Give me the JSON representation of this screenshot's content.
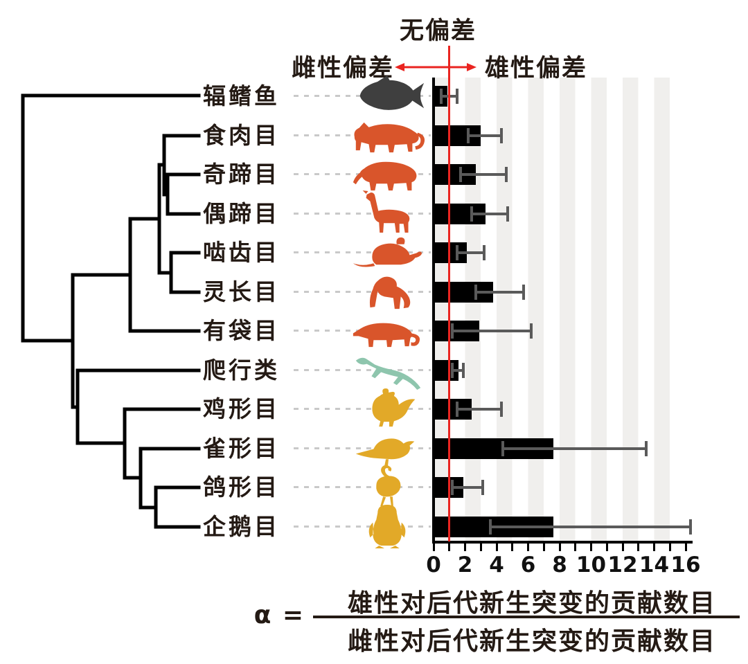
{
  "header": {
    "no_bias_label": "无偏差",
    "female_bias_label": "雌性偏差",
    "male_bias_label": "雄性偏差"
  },
  "chart_data": {
    "type": "bar",
    "orientation": "horizontal",
    "title": "",
    "xlabel": "α",
    "xlim": [
      0,
      16.5
    ],
    "x_major_ticks": [
      0,
      2,
      4,
      6,
      8,
      10,
      12,
      14,
      16
    ],
    "x_minor_tick_step": 1,
    "reference_line_x": 1,
    "grid": "alternating vertical 1-unit stripes starting grey at 0",
    "rows": [
      {
        "taxon": "辐鳍鱼",
        "icon": "fish",
        "icon_color": "#3f3f3f",
        "alpha": 0.9,
        "ci_low": 0.5,
        "ci_high": 1.5
      },
      {
        "taxon": "食肉目",
        "icon": "tiger",
        "icon_color": "#d9552b",
        "alpha": 3.0,
        "ci_low": 2.2,
        "ci_high": 4.3
      },
      {
        "taxon": "奇蹄目",
        "icon": "tapir",
        "icon_color": "#d9552b",
        "alpha": 2.7,
        "ci_low": 1.7,
        "ci_high": 4.6
      },
      {
        "taxon": "偶蹄目",
        "icon": "giraffe",
        "icon_color": "#d9552b",
        "alpha": 3.3,
        "ci_low": 2.4,
        "ci_high": 4.7
      },
      {
        "taxon": "啮齿目",
        "icon": "rat",
        "icon_color": "#d9552b",
        "alpha": 2.1,
        "ci_low": 1.5,
        "ci_high": 3.2
      },
      {
        "taxon": "灵长目",
        "icon": "chimp",
        "icon_color": "#d9552b",
        "alpha": 3.8,
        "ci_low": 2.7,
        "ci_high": 5.7
      },
      {
        "taxon": "有袋目",
        "icon": "opossum",
        "icon_color": "#d9552b",
        "alpha": 2.9,
        "ci_low": 1.2,
        "ci_high": 6.2
      },
      {
        "taxon": "爬行类",
        "icon": "lizard",
        "icon_color": "#8ec5ad",
        "alpha": 1.6,
        "ci_low": 1.2,
        "ci_high": 1.9
      },
      {
        "taxon": "鸡形目",
        "icon": "rooster",
        "icon_color": "#e2a928",
        "alpha": 2.4,
        "ci_low": 1.5,
        "ci_high": 4.3
      },
      {
        "taxon": "雀形目",
        "icon": "songbird",
        "icon_color": "#e2a928",
        "alpha": 7.6,
        "ci_low": 4.4,
        "ci_high": 13.5
      },
      {
        "taxon": "鸽形目",
        "icon": "flamingo",
        "icon_color": "#e2a928",
        "alpha": 1.9,
        "ci_low": 1.2,
        "ci_high": 3.1
      },
      {
        "taxon": "企鹅目",
        "icon": "penguin",
        "icon_color": "#e2a928",
        "alpha": 7.6,
        "ci_low": 3.6,
        "ci_high": 16.3
      }
    ],
    "colors": {
      "bar": "#000000",
      "error_bar": "#5a5a5a",
      "stripe": "#f0efed",
      "reference_line": "#ea2420",
      "tree": "#000000",
      "leader_dots": "#c9c9c9"
    },
    "legend_position": "none"
  },
  "formula": {
    "prefix": "α =",
    "numerator": "雄性对后代新生突变的贡献数目",
    "denominator": "雌性对后代新生突变的贡献数目"
  }
}
